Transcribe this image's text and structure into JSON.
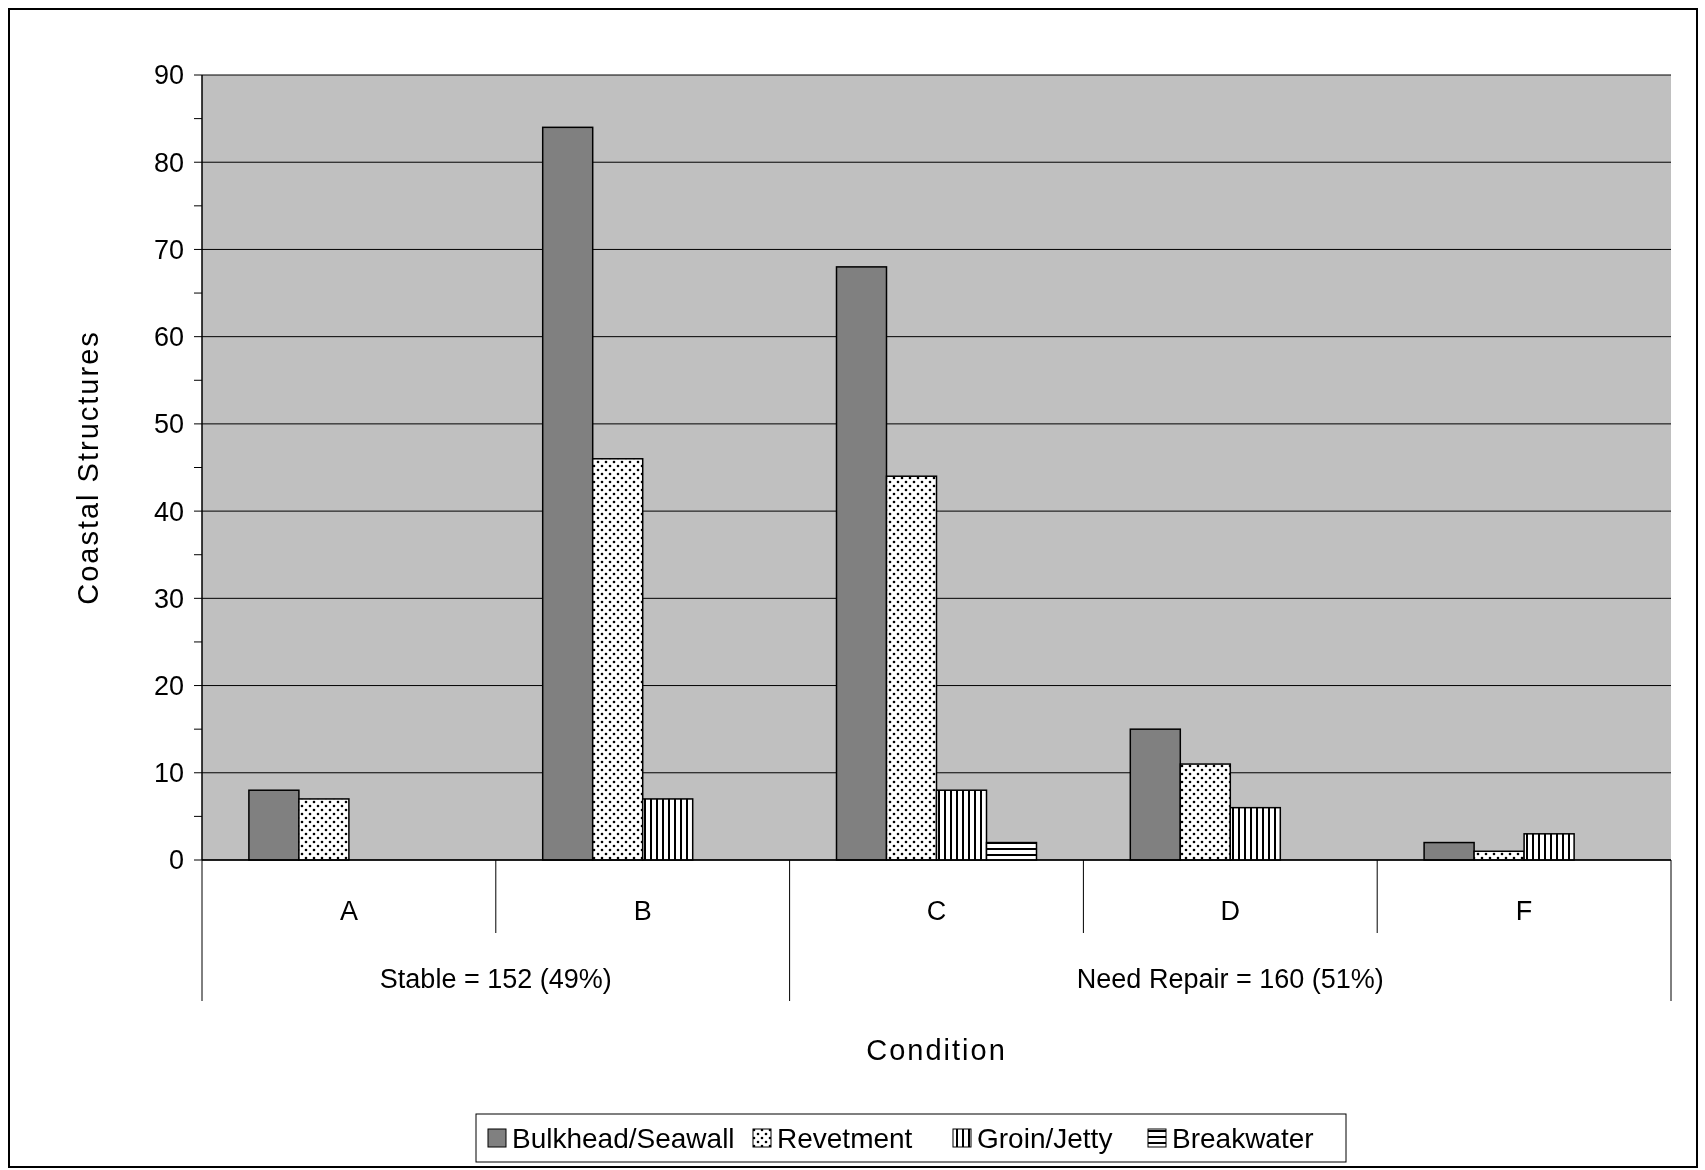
{
  "chart_data": {
    "type": "bar",
    "xlabel": "Condition",
    "ylabel": "Coastal Structures",
    "categories": [
      "A",
      "B",
      "C",
      "D",
      "F"
    ],
    "series": [
      {
        "name": "Bulkhead/Seawall",
        "color": "#808080",
        "values": [
          8,
          84,
          68,
          15,
          2
        ]
      },
      {
        "name": "Revetment",
        "color": "#000000",
        "values": [
          7,
          46,
          44,
          11,
          1
        ]
      },
      {
        "name": "Groin/Jetty",
        "color": "#000000",
        "values": [
          0,
          7,
          8,
          6,
          3
        ]
      },
      {
        "name": "Breakwater",
        "color": "#000000",
        "values": [
          0,
          0,
          2,
          0,
          0
        ]
      }
    ],
    "ylim": [
      0,
      90
    ],
    "yticks": [
      0,
      {
        "value": 5,
        "label": null
      },
      10,
      {
        "value": 15,
        "label": null
      },
      20,
      {
        "value": 25,
        "label": null
      },
      30,
      {
        "value": 35,
        "label": null
      },
      40,
      {
        "value": 45,
        "label": null
      },
      50,
      {
        "value": 55,
        "label": null
      },
      60,
      {
        "value": 65,
        "label": null
      },
      70,
      {
        "value": 75,
        "label": null
      },
      80,
      {
        "value": 85,
        "label": null
      },
      90
    ],
    "grid": "y",
    "legend": "bottom",
    "annotations": [
      "Stable = 152 (49%)",
      "Need Repair = 160 (51%)"
    ]
  }
}
